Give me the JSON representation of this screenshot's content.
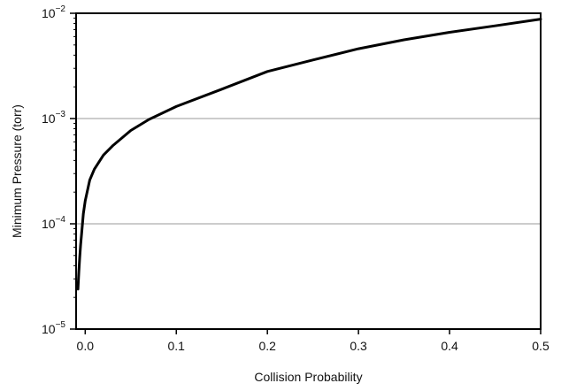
{
  "chart_data": {
    "type": "line",
    "title": "",
    "xlabel": "Collision Probability",
    "ylabel": "Minimum Pressure (torr)",
    "xlim": [
      -0.01,
      0.5
    ],
    "ylim": [
      1e-05,
      0.01
    ],
    "yscale": "log",
    "grid": "horizontal",
    "x_ticks": [
      {
        "value": 0.0,
        "label": "0.0"
      },
      {
        "value": 0.1,
        "label": "0.1"
      },
      {
        "value": 0.2,
        "label": "0.2"
      },
      {
        "value": 0.3,
        "label": "0.3"
      },
      {
        "value": 0.4,
        "label": "0.4"
      },
      {
        "value": 0.5,
        "label": "0.5"
      }
    ],
    "y_ticks": [
      {
        "value": 1e-05,
        "base": "10",
        "exp": "−5"
      },
      {
        "value": 0.0001,
        "base": "10",
        "exp": "−4"
      },
      {
        "value": 0.001,
        "base": "10",
        "exp": "−3"
      },
      {
        "value": 0.01,
        "base": "10",
        "exp": "−2"
      }
    ],
    "series": [
      {
        "color": "#000000",
        "x": [
          -0.008,
          -0.007,
          -0.006,
          -0.005,
          -0.004,
          -0.002,
          0.0,
          0.005,
          0.01,
          0.02,
          0.03,
          0.05,
          0.07,
          0.1,
          0.15,
          0.2,
          0.25,
          0.3,
          0.35,
          0.4,
          0.45,
          0.5
        ],
        "y": [
          2.4e-05,
          3.5e-05,
          4.8e-05,
          6.3e-05,
          8e-05,
          0.000125,
          0.000165,
          0.00026,
          0.00033,
          0.00045,
          0.00055,
          0.00077,
          0.00098,
          0.0013,
          0.0019,
          0.0028,
          0.0036,
          0.0046,
          0.0056,
          0.0066,
          0.0076,
          0.0088
        ]
      }
    ]
  }
}
